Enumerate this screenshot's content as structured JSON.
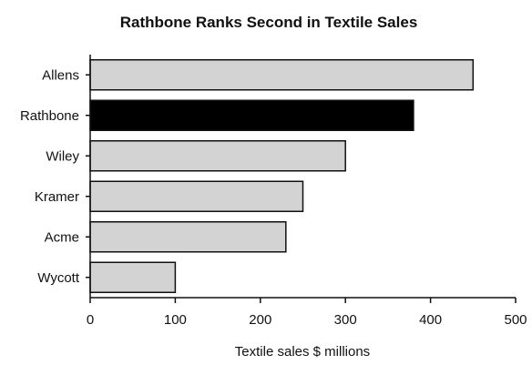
{
  "chart_data": {
    "type": "bar",
    "orientation": "horizontal",
    "title": "Rathbone Ranks Second in Textile Sales",
    "xlabel": "Textile sales $ millions",
    "ylabel": "",
    "categories": [
      "Allens",
      "Rathbone",
      "Wiley",
      "Kramer",
      "Acme",
      "Wycott"
    ],
    "values": [
      450,
      380,
      300,
      250,
      230,
      100
    ],
    "highlight": "Rathbone",
    "xlim": [
      0,
      500
    ],
    "xticks": [
      "0",
      "100",
      "200",
      "300",
      "400",
      "500"
    ],
    "grid": false,
    "colors": {
      "bar": "#d3d3d3",
      "highlight": "#000000",
      "axis": "#111111"
    }
  }
}
